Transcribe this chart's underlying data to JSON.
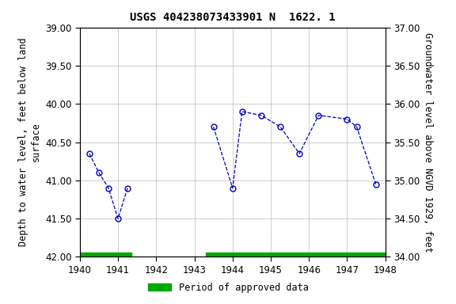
{
  "title": "USGS 404238073433901 N  1622. 1",
  "segments": [
    {
      "x": [
        1940.25,
        1940.5,
        1940.75,
        1941.0,
        1941.25
      ],
      "y": [
        40.65,
        40.9,
        41.1,
        41.5,
        41.1
      ]
    },
    {
      "x": [
        1943.5,
        1944.0,
        1944.25,
        1944.75,
        1945.25,
        1945.75,
        1946.25,
        1947.0,
        1947.25,
        1947.75
      ],
      "y": [
        40.3,
        41.1,
        40.1,
        40.15,
        40.3,
        40.65,
        40.15,
        40.2,
        40.3,
        41.05
      ]
    }
  ],
  "xlim": [
    1940,
    1948
  ],
  "ylim": [
    42.0,
    39.0
  ],
  "y2lim": [
    34.0,
    37.0
  ],
  "xticks": [
    1940,
    1941,
    1942,
    1943,
    1944,
    1945,
    1946,
    1947,
    1948
  ],
  "yticks": [
    39.0,
    39.5,
    40.0,
    40.5,
    41.0,
    41.5,
    42.0
  ],
  "y2ticks": [
    34.0,
    34.5,
    35.0,
    35.5,
    36.0,
    36.5,
    37.0
  ],
  "ylabel": "Depth to water level, feet below land\nsurface",
  "y2label": "Groundwater level above NGVD 1929, feet",
  "line_color": "#0000bb",
  "marker_color": "#0000bb",
  "bg_color": "#ffffff",
  "grid_color": "#bbbbbb",
  "approved_bars": [
    {
      "xstart": 1940.0,
      "xend": 1941.35
    },
    {
      "xstart": 1943.3,
      "xend": 1948.0
    }
  ],
  "approved_color": "#00aa00",
  "legend_label": "Period of approved data",
  "title_fontsize": 10,
  "label_fontsize": 8.5,
  "tick_fontsize": 8.5
}
